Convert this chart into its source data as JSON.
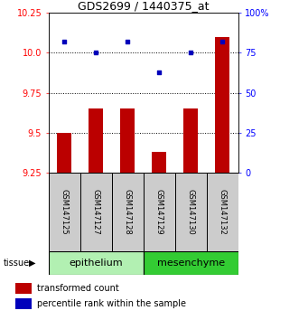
{
  "title": "GDS2699 / 1440375_at",
  "samples": [
    "GSM147125",
    "GSM147127",
    "GSM147128",
    "GSM147129",
    "GSM147130",
    "GSM147132"
  ],
  "red_values": [
    9.5,
    9.65,
    9.65,
    9.38,
    9.65,
    10.1
  ],
  "blue_values": [
    82,
    75,
    82,
    63,
    75,
    82
  ],
  "ylim_left": [
    9.25,
    10.25
  ],
  "ylim_right": [
    0,
    100
  ],
  "yticks_left": [
    9.25,
    9.5,
    9.75,
    10.0,
    10.25
  ],
  "yticks_right": [
    0,
    25,
    50,
    75,
    100
  ],
  "ytick_labels_right": [
    "0",
    "25",
    "50",
    "75",
    "100%"
  ],
  "grid_yticks": [
    9.5,
    9.75,
    10.0
  ],
  "groups": [
    {
      "label": "epithelium",
      "indices": [
        0,
        1,
        2
      ],
      "color": "#b2f0b2"
    },
    {
      "label": "mesenchyme",
      "indices": [
        3,
        4,
        5
      ],
      "color": "#33cc33"
    }
  ],
  "bar_color": "#bb0000",
  "dot_color": "#0000bb",
  "bar_bottom": 9.25,
  "label_area_color": "#cccccc",
  "tissue_label": "tissue",
  "legend_red": "transformed count",
  "legend_blue": "percentile rank within the sample",
  "title_fontsize": 9,
  "tick_fontsize": 7,
  "sample_fontsize": 6,
  "group_fontsize": 8,
  "legend_fontsize": 7
}
